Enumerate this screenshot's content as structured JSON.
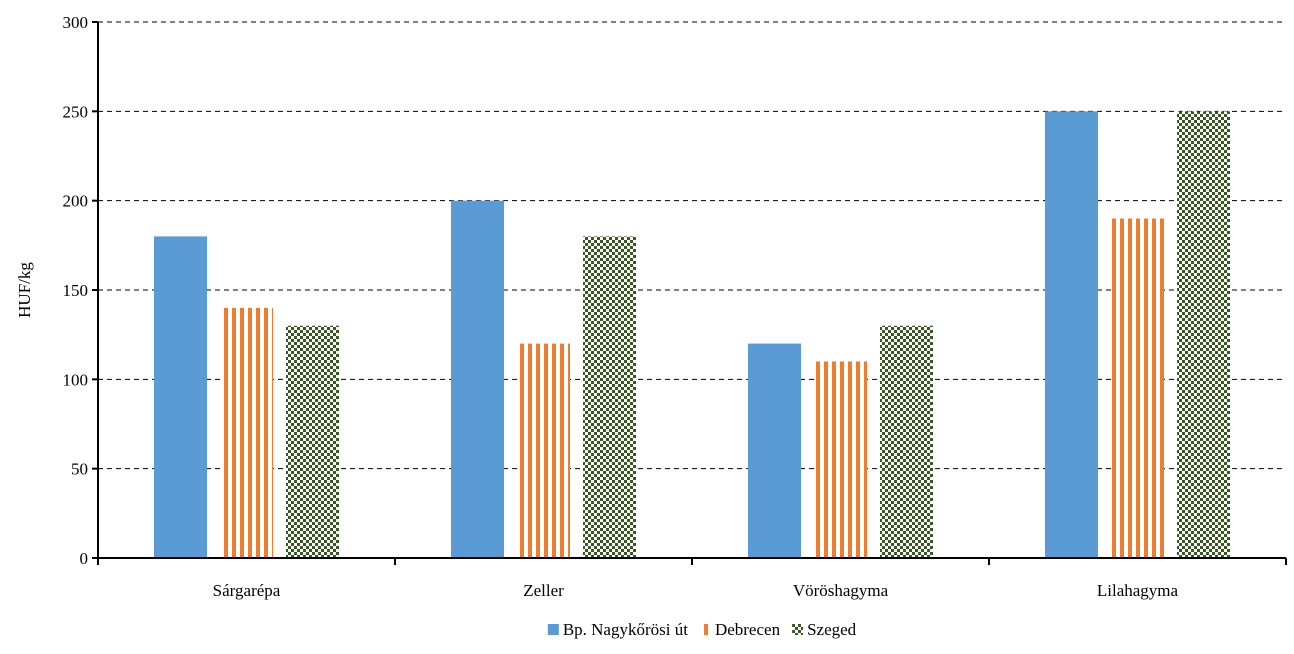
{
  "chart_data": {
    "type": "bar",
    "title": "",
    "xlabel": "",
    "ylabel": "HUF/kg",
    "ylim": [
      0,
      300
    ],
    "ytick_step": 50,
    "grid": true,
    "legend_position": "bottom",
    "categories": [
      "Sárgarépa",
      "Zeller",
      "Vöröshagyma",
      "Lilahagyma"
    ],
    "series": [
      {
        "name": "Bp. Nagykőrösi út",
        "color": "#5b9bd5",
        "pattern": "solid",
        "values": [
          180,
          200,
          120,
          250
        ]
      },
      {
        "name": "Debrecen",
        "color": "#ed7d31",
        "pattern": "vertical-stripes",
        "values": [
          140,
          120,
          110,
          190
        ]
      },
      {
        "name": "Szeged",
        "color": "#385723",
        "pattern": "checkerboard",
        "values": [
          130,
          180,
          130,
          250
        ]
      }
    ]
  }
}
